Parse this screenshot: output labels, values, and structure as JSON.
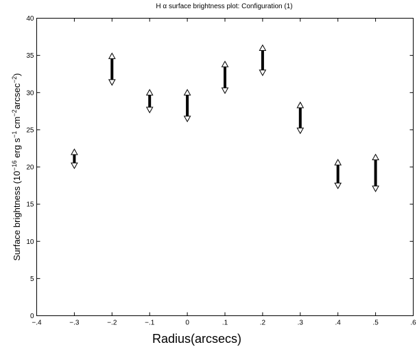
{
  "chart_data": {
    "type": "error_bar",
    "title": "H α  surface brightness plot: Configuration (1)",
    "xlabel": "Radius(arcsecs)",
    "ylabel": {
      "prefix": "Surface brightness (10",
      "exp1": "−16",
      "mid1": " erg s",
      "exp2": "−1",
      "mid2": " cm",
      "exp3": "−2",
      "mid3": "arcsec",
      "exp4": "−2",
      "suffix": ")"
    },
    "xlim": [
      -0.4,
      0.6
    ],
    "ylim": [
      0,
      40
    ],
    "x_ticks": [
      -0.4,
      -0.3,
      -0.2,
      -0.1,
      0,
      0.1,
      0.2,
      0.3,
      0.4,
      0.5,
      0.6
    ],
    "x_tick_labels": [
      "−.4",
      "−.3",
      "−.2",
      "−.1",
      "0",
      ".1",
      ".2",
      ".3",
      ".4",
      ".5",
      ".6"
    ],
    "y_ticks": [
      0,
      5,
      10,
      15,
      20,
      25,
      30,
      35,
      40
    ],
    "y_tick_labels": [
      "0",
      "5",
      "10",
      "15",
      "20",
      "25",
      "30",
      "35",
      "40"
    ],
    "grid": false,
    "points": [
      {
        "x": -0.3,
        "low": 19.8,
        "high": 22.4
      },
      {
        "x": -0.2,
        "low": 31.0,
        "high": 35.3
      },
      {
        "x": -0.1,
        "low": 27.3,
        "high": 30.4
      },
      {
        "x": 0.0,
        "low": 26.1,
        "high": 30.4
      },
      {
        "x": 0.1,
        "low": 29.9,
        "high": 34.2
      },
      {
        "x": 0.2,
        "low": 32.3,
        "high": 36.4
      },
      {
        "x": 0.3,
        "low": 24.5,
        "high": 28.7
      },
      {
        "x": 0.4,
        "low": 17.1,
        "high": 21.0
      },
      {
        "x": 0.5,
        "low": 16.7,
        "high": 21.7
      }
    ]
  }
}
